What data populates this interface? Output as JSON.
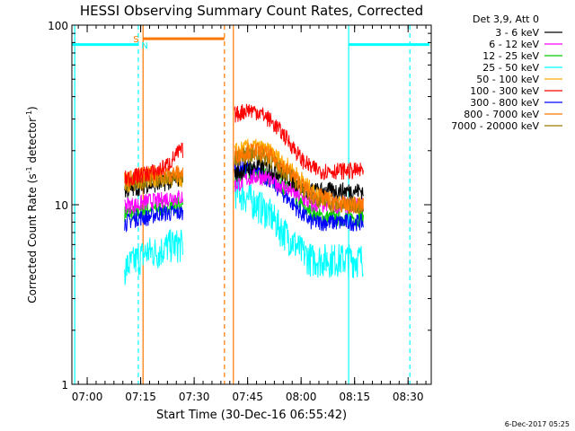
{
  "chart_data": {
    "type": "line",
    "title": "HESSI Observing Summary Count Rates, Corrected",
    "xlabel": "Start Time (30-Dec-16 06:55:42)",
    "ylabel_main": "Corrected Count Rate (s",
    "ylabel_sup1": "-1",
    "ylabel_mid": " detector",
    "ylabel_sup2": "-1",
    "ylabel_end": ")",
    "y_scale": "log",
    "ylim": [
      1,
      100
    ],
    "xlim": [
      "06:55:42",
      "08:36:30"
    ],
    "x_ticks": [
      "07:00",
      "07:15",
      "07:30",
      "07:45",
      "08:00",
      "08:15",
      "08:30"
    ],
    "y_ticks": [
      "1",
      "10",
      "100"
    ],
    "legend": {
      "position": "right",
      "header": "Det 3,9, Att 0",
      "entries": [
        {
          "label": "3 - 6 keV",
          "color": "#000000"
        },
        {
          "label": "6 - 12 keV",
          "color": "#ff00ff"
        },
        {
          "label": "12 - 25 keV",
          "color": "#00cc00"
        },
        {
          "label": "25 - 50 keV",
          "color": "#00ffff"
        },
        {
          "label": "50 - 100 keV",
          "color": "#ffaa00"
        },
        {
          "label": "100 - 300 keV",
          "color": "#ff0000"
        },
        {
          "label": "300 - 800 keV",
          "color": "#0000ff"
        },
        {
          "label": "800 - 7000 keV",
          "color": "#ff7700"
        },
        {
          "label": "7000 - 20000 keV",
          "color": "#9a7a00"
        }
      ]
    },
    "flags": [
      {
        "label": "S",
        "color": "#ff7700"
      },
      {
        "label": "N",
        "color": "#00ffff"
      }
    ],
    "markers": {
      "saa_interval": {
        "start": "07:15:40",
        "end": "07:38:30",
        "level": 84,
        "color": "#ff7700"
      },
      "night_intervals": [
        {
          "start": "06:55:42",
          "end": "07:14:20",
          "level": 78
        },
        {
          "start": "08:13:20",
          "end": "08:36:00",
          "level": 78
        }
      ],
      "vertical_lines": [
        {
          "time": "06:56:30",
          "color": "#00ffff",
          "style": "solid"
        },
        {
          "time": "07:14:20",
          "color": "#00ffff",
          "style": "dashed"
        },
        {
          "time": "07:15:40",
          "color": "#ff7700",
          "style": "solid"
        },
        {
          "time": "07:38:30",
          "color": "#ff7700",
          "style": "dashed"
        },
        {
          "time": "07:41:00",
          "color": "#ff7700",
          "style": "solid"
        },
        {
          "time": "08:13:20",
          "color": "#00ffff",
          "style": "solid"
        },
        {
          "time": "08:30:30",
          "color": "#00ffff",
          "style": "dashed"
        }
      ]
    },
    "segments": [
      {
        "start": "07:10:30",
        "end": "07:26:50"
      },
      {
        "start": "07:41:20",
        "end": "08:17:30"
      }
    ],
    "series": [
      {
        "name": "3 - 6 keV",
        "color": "#000000",
        "seg1": {
          "x": [
            "07:11",
            "07:14",
            "07:17",
            "07:20",
            "07:23",
            "07:26"
          ],
          "y": [
            12,
            12.5,
            13,
            13,
            13.5,
            14
          ]
        },
        "seg2": {
          "x": [
            "07:42",
            "07:45",
            "07:48",
            "07:51",
            "07:54",
            "07:57",
            "08:00",
            "08:03",
            "08:06",
            "08:09",
            "08:12",
            "08:15",
            "08:17"
          ],
          "y": [
            15,
            16,
            16.5,
            16,
            15,
            14,
            12.5,
            12,
            12,
            12,
            12,
            12,
            12
          ]
        }
      },
      {
        "name": "6 - 12 keV",
        "color": "#ff00ff",
        "seg1": {
          "x": [
            "07:11",
            "07:14",
            "07:17",
            "07:20",
            "07:23",
            "07:26"
          ],
          "y": [
            10,
            10,
            10.5,
            10.5,
            11,
            11
          ]
        },
        "seg2": {
          "x": [
            "07:42",
            "07:45",
            "07:48",
            "07:51",
            "07:54",
            "07:57",
            "08:00",
            "08:03",
            "08:06",
            "08:09",
            "08:12",
            "08:15",
            "08:17"
          ],
          "y": [
            13,
            14,
            14.5,
            14,
            13,
            12,
            11,
            10,
            10,
            10,
            10,
            10,
            10
          ]
        }
      },
      {
        "name": "12 - 25 keV",
        "color": "#00cc00",
        "seg1": {
          "x": [
            "07:11",
            "07:14",
            "07:17",
            "07:20",
            "07:23",
            "07:26"
          ],
          "y": [
            9,
            9,
            9.5,
            9.5,
            10,
            10
          ]
        },
        "seg2": {
          "x": [
            "07:42",
            "07:45",
            "07:48",
            "07:51",
            "07:54",
            "07:57",
            "08:00",
            "08:03",
            "08:06",
            "08:09",
            "08:12",
            "08:15",
            "08:17"
          ],
          "y": [
            14,
            15,
            15,
            14.5,
            13,
            12,
            10,
            9,
            8.5,
            8.5,
            8.5,
            8.5,
            8.5
          ]
        }
      },
      {
        "name": "25 - 50 keV",
        "color": "#00ffff",
        "seg1": {
          "x": [
            "07:11",
            "07:14",
            "07:17",
            "07:20",
            "07:23",
            "07:26"
          ],
          "y": [
            4.5,
            5,
            5.5,
            5.5,
            6,
            6
          ]
        },
        "seg2": {
          "x": [
            "07:42",
            "07:45",
            "07:48",
            "07:51",
            "07:54",
            "07:57",
            "08:00",
            "08:03",
            "08:06",
            "08:09",
            "08:12",
            "08:15",
            "08:17"
          ],
          "y": [
            12,
            11,
            10,
            9,
            7.5,
            6.5,
            5.5,
            5,
            5,
            5,
            5,
            5,
            5
          ]
        }
      },
      {
        "name": "50 - 100 keV",
        "color": "#ffaa00",
        "seg1": {
          "x": [
            "07:11",
            "07:14",
            "07:17",
            "07:20",
            "07:23",
            "07:26"
          ],
          "y": [
            13,
            13.5,
            14,
            14,
            14,
            14
          ]
        },
        "seg2": {
          "x": [
            "07:42",
            "07:45",
            "07:48",
            "07:51",
            "07:54",
            "07:57",
            "08:00",
            "08:03",
            "08:06",
            "08:09",
            "08:12",
            "08:15",
            "08:17"
          ],
          "y": [
            20,
            21,
            21,
            20,
            18,
            16,
            14,
            12,
            11,
            10.5,
            10,
            10,
            10
          ]
        }
      },
      {
        "name": "100 - 300 keV",
        "color": "#ff0000",
        "seg1": {
          "x": [
            "07:11",
            "07:14",
            "07:17",
            "07:20",
            "07:23",
            "07:26"
          ],
          "y": [
            14,
            14.5,
            15,
            15.5,
            17,
            20
          ]
        },
        "seg2": {
          "x": [
            "07:42",
            "07:45",
            "07:48",
            "07:51",
            "07:54",
            "07:57",
            "08:00",
            "08:03",
            "08:06",
            "08:09",
            "08:12",
            "08:15",
            "08:17"
          ],
          "y": [
            32,
            34,
            33,
            30,
            26,
            22,
            18,
            16,
            15.5,
            15.5,
            15.5,
            15.5,
            15.5
          ]
        }
      },
      {
        "name": "300 - 800 keV",
        "color": "#0000ff",
        "seg1": {
          "x": [
            "07:11",
            "07:14",
            "07:17",
            "07:20",
            "07:23",
            "07:26"
          ],
          "y": [
            8,
            8.5,
            8.5,
            9,
            9,
            9
          ]
        },
        "seg2": {
          "x": [
            "07:42",
            "07:45",
            "07:48",
            "07:51",
            "07:54",
            "07:57",
            "08:00",
            "08:03",
            "08:06",
            "08:09",
            "08:12",
            "08:15",
            "08:17"
          ],
          "y": [
            16,
            16,
            15,
            14,
            12,
            10.5,
            9,
            8,
            8,
            8,
            8,
            8,
            8
          ]
        }
      },
      {
        "name": "800 - 7000 keV",
        "color": "#ff7700",
        "seg1": {
          "x": [
            "07:11",
            "07:14",
            "07:17",
            "07:20",
            "07:23",
            "07:26"
          ],
          "y": [
            14,
            14.5,
            15,
            15,
            15,
            15
          ]
        },
        "seg2": {
          "x": [
            "07:42",
            "07:45",
            "07:48",
            "07:51",
            "07:54",
            "07:57",
            "08:00",
            "08:03",
            "08:06",
            "08:09",
            "08:12",
            "08:15",
            "08:17"
          ],
          "y": [
            19,
            20,
            20,
            19,
            17,
            15,
            13,
            11.5,
            11,
            10.5,
            10,
            10,
            10
          ]
        }
      },
      {
        "name": "7000 - 20000 keV",
        "color": "#9a7a00",
        "seg1": {
          "x": [
            "07:11",
            "07:14",
            "07:17",
            "07:20",
            "07:23",
            "07:26"
          ],
          "y": [
            13,
            13.5,
            14,
            14,
            14,
            14
          ]
        },
        "seg2": {
          "x": [
            "07:42",
            "07:45",
            "07:48",
            "07:51",
            "07:54",
            "07:57",
            "08:00",
            "08:03",
            "08:06",
            "08:09",
            "08:12",
            "08:15",
            "08:17"
          ],
          "y": [
            18,
            19,
            19,
            18,
            16,
            14.5,
            12.5,
            11,
            10.5,
            10,
            10,
            10,
            10
          ]
        }
      }
    ]
  },
  "footer": {
    "timestamp": "6-Dec-2017 05:25"
  }
}
